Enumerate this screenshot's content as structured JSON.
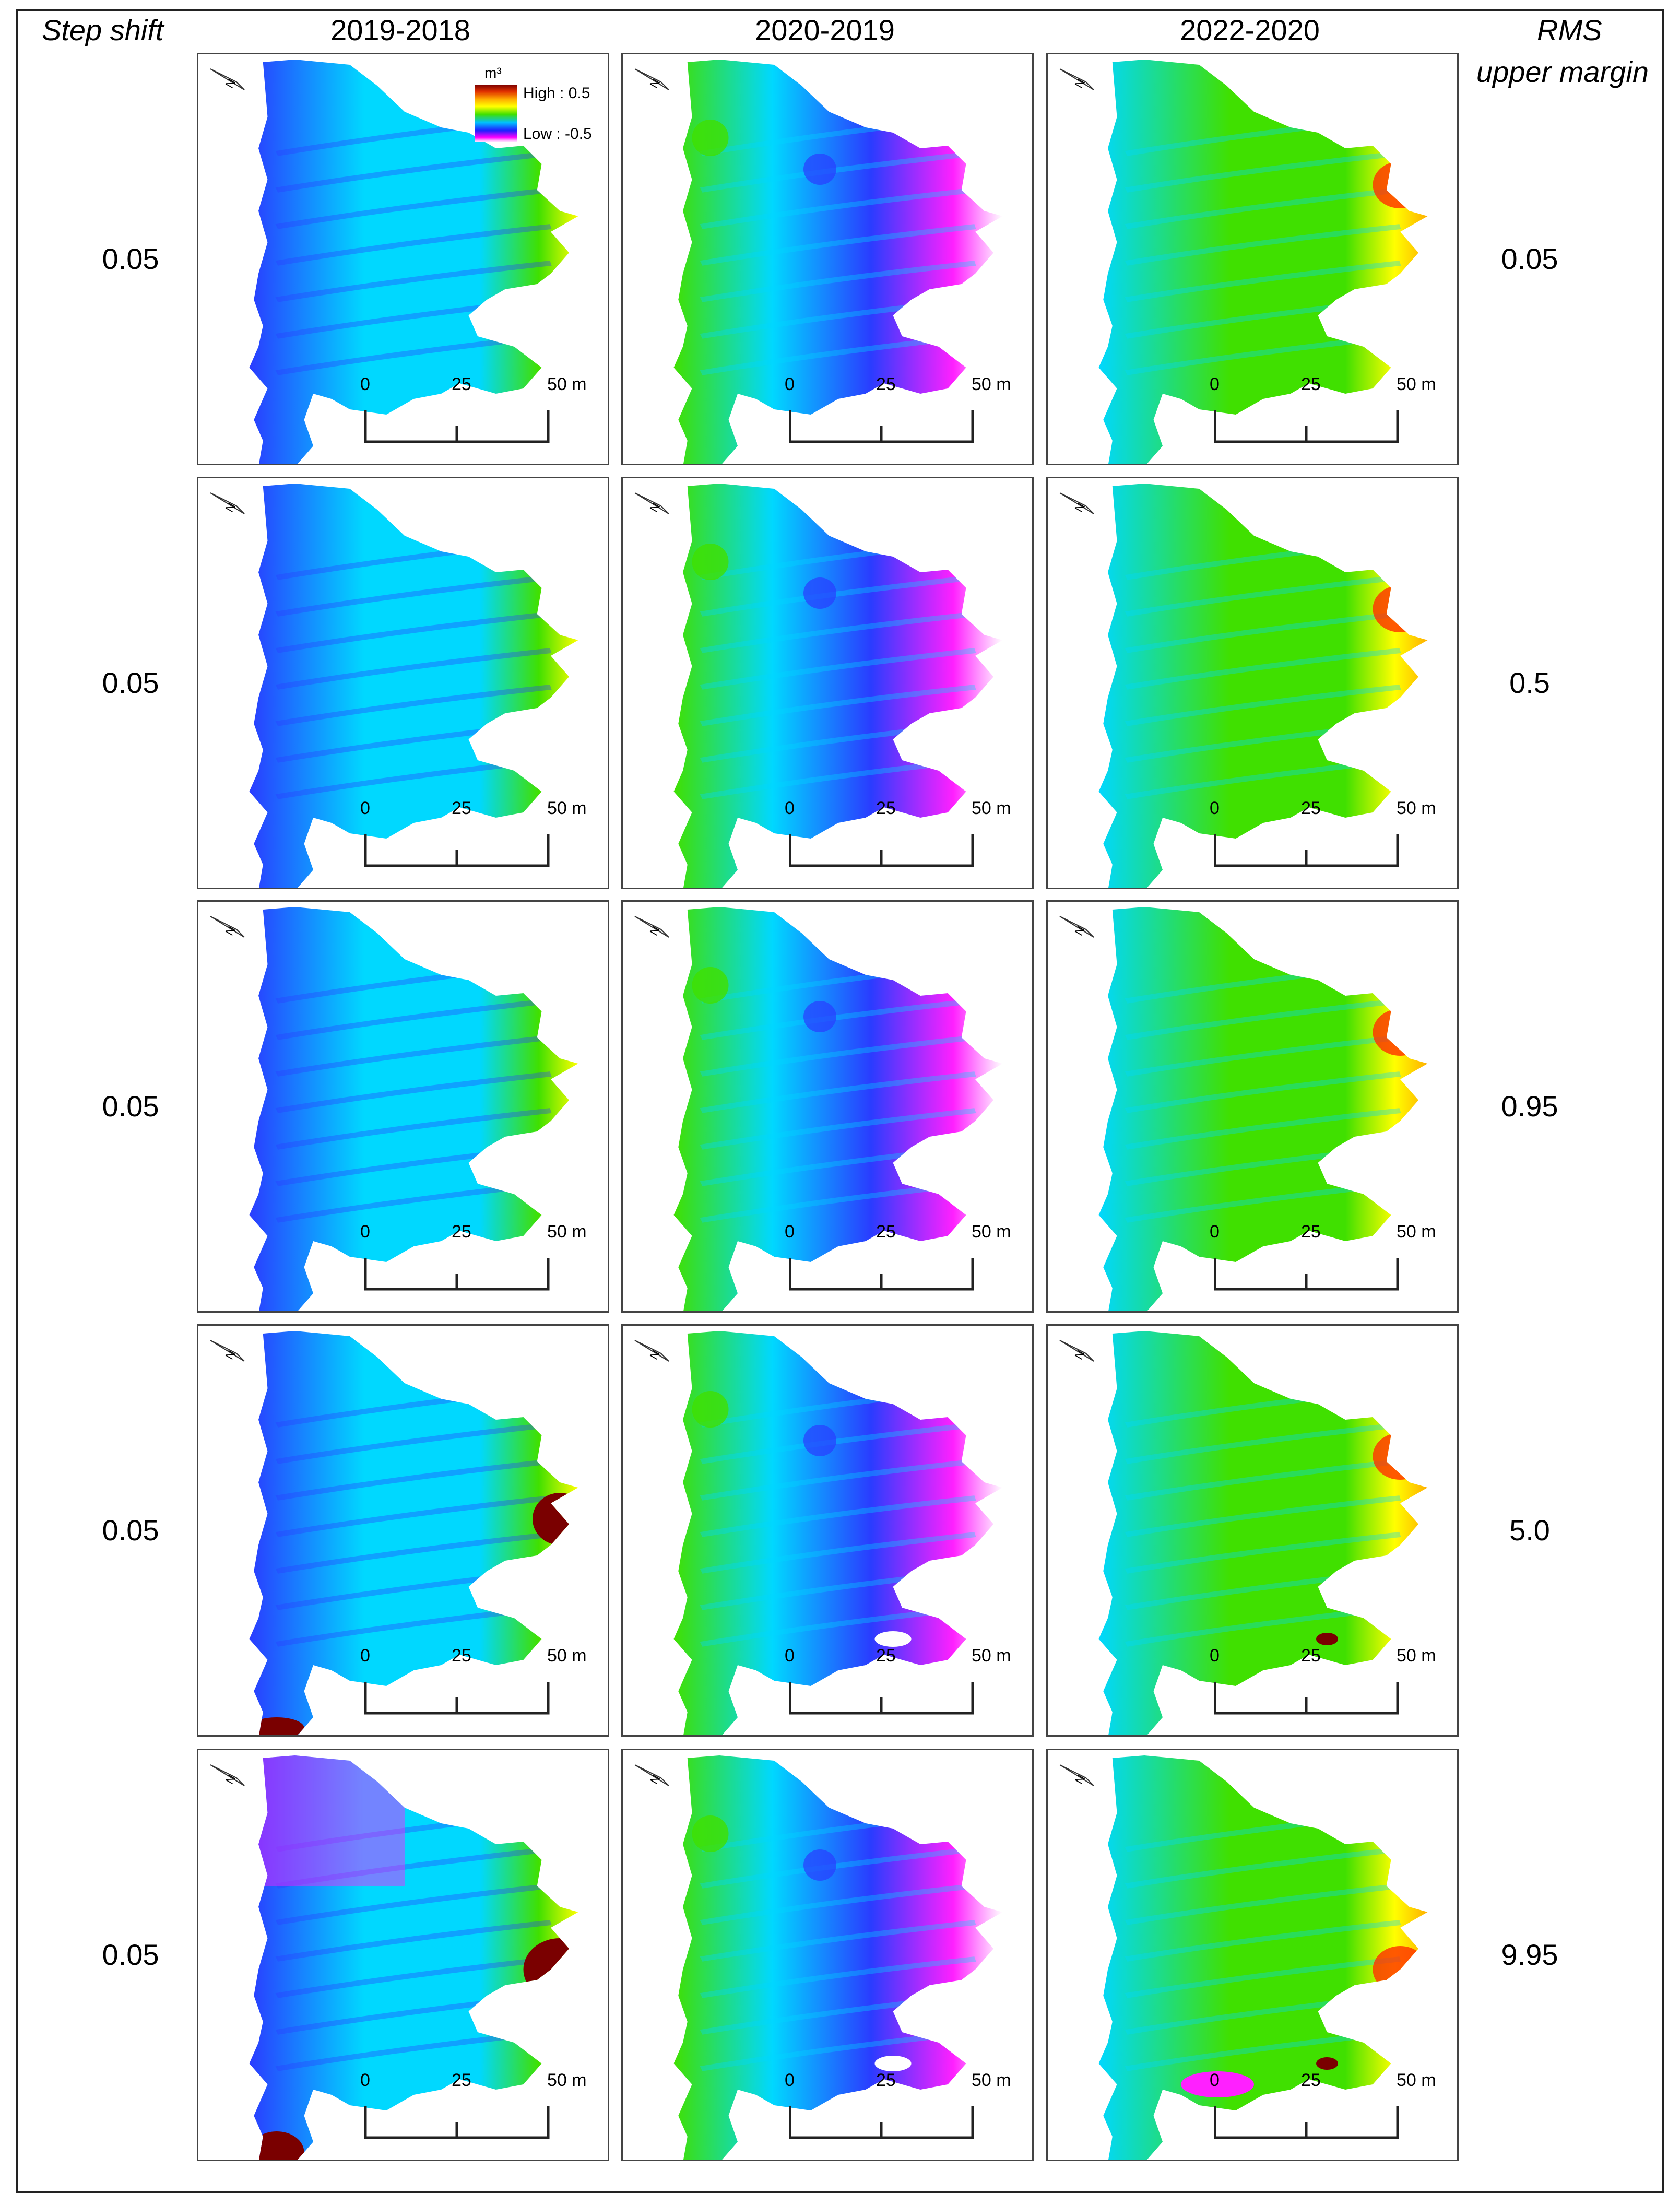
{
  "headers": {
    "step_shift": "Step shift",
    "rms_line1": "RMS",
    "rms_line2": "upper margin",
    "columns": [
      "2019-2018",
      "2020-2019",
      "2022-2020"
    ]
  },
  "rows": [
    {
      "step_shift": "0.05",
      "rms_upper_margin": "0.05"
    },
    {
      "step_shift": "0.05",
      "rms_upper_margin": "0.5"
    },
    {
      "step_shift": "0.05",
      "rms_upper_margin": "0.95"
    },
    {
      "step_shift": "0.05",
      "rms_upper_margin": "5.0"
    },
    {
      "step_shift": "0.05",
      "rms_upper_margin": "9.95"
    }
  ],
  "legend": {
    "unit": "m³",
    "high": "High : 0.5",
    "low": "Low : -0.5"
  },
  "scale_bar": {
    "labels": [
      "0",
      "25",
      "50 m"
    ]
  },
  "colors": {
    "palette": [
      "#7a0000",
      "#ff3000",
      "#ffb000",
      "#ffff00",
      "#40e000",
      "#00d8ff",
      "#2a3cff",
      "#ff20ff",
      "#ffffff"
    ]
  }
}
